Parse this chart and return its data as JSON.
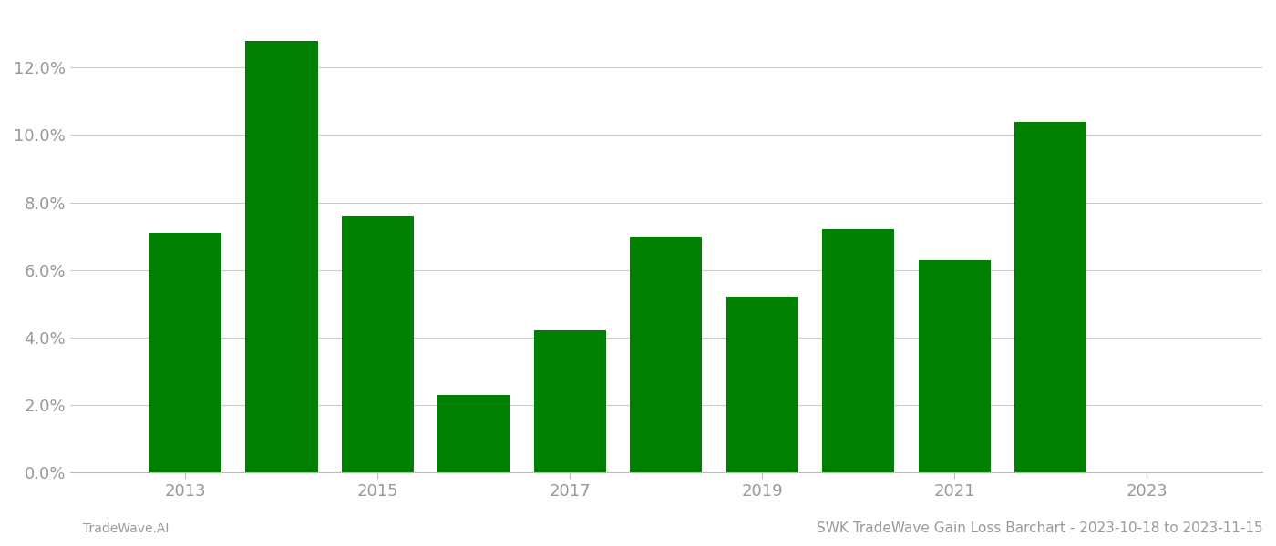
{
  "years": [
    2013,
    2014,
    2015,
    2016,
    2017,
    2018,
    2019,
    2020,
    2021,
    2022,
    2023
  ],
  "values": [
    0.071,
    0.128,
    0.076,
    0.023,
    0.042,
    0.07,
    0.052,
    0.072,
    0.063,
    0.104,
    0.0
  ],
  "bar_color": "#008000",
  "title": "SWK TradeWave Gain Loss Barchart - 2023-10-18 to 2023-11-15",
  "footnote_left": "TradeWave.AI",
  "ylim": [
    0,
    0.136
  ],
  "yticks": [
    0.0,
    0.02,
    0.04,
    0.06,
    0.08,
    0.1,
    0.12
  ],
  "xtick_labels": [
    "2013",
    "2015",
    "2017",
    "2019",
    "2021",
    "2023"
  ],
  "xtick_positions": [
    2013,
    2015,
    2017,
    2019,
    2021,
    2023
  ],
  "background_color": "#ffffff",
  "grid_color": "#cccccc",
  "bar_width": 0.75,
  "title_fontsize": 11,
  "footnote_fontsize": 10,
  "tick_fontsize": 13,
  "tick_color": "#999999",
  "xlim_left": 2011.8,
  "xlim_right": 2024.2
}
